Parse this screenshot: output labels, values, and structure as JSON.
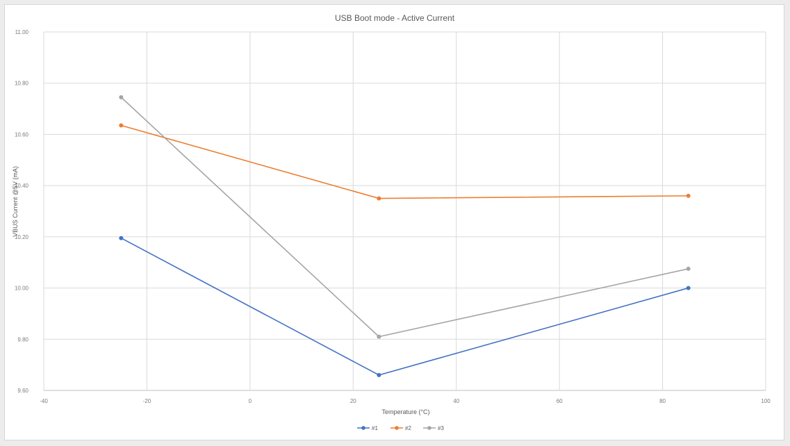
{
  "chart_data": {
    "type": "line",
    "title": "USB Boot mode - Active Current",
    "xlabel": "Temperature (°C)",
    "ylabel": "VBUS Current @5V (mA)",
    "xlim": [
      -40,
      100
    ],
    "ylim": [
      9.6,
      11.0
    ],
    "xticks": [
      "-40",
      "-20",
      "0",
      "20",
      "40",
      "60",
      "80",
      "100"
    ],
    "yticks": [
      "9.60",
      "9.80",
      "10.00",
      "10.20",
      "10.40",
      "10.60",
      "10.80",
      "11.00"
    ],
    "grid": true,
    "legend_position": "bottom",
    "x": [
      -25,
      25,
      85
    ],
    "series": [
      {
        "name": "#1",
        "color": "#4472c4",
        "values": [
          10.195,
          9.66,
          10.0
        ]
      },
      {
        "name": "#2",
        "color": "#ed7d31",
        "values": [
          10.635,
          10.35,
          10.36
        ]
      },
      {
        "name": "#3",
        "color": "#a5a5a5",
        "values": [
          10.745,
          9.81,
          10.075
        ]
      }
    ]
  }
}
